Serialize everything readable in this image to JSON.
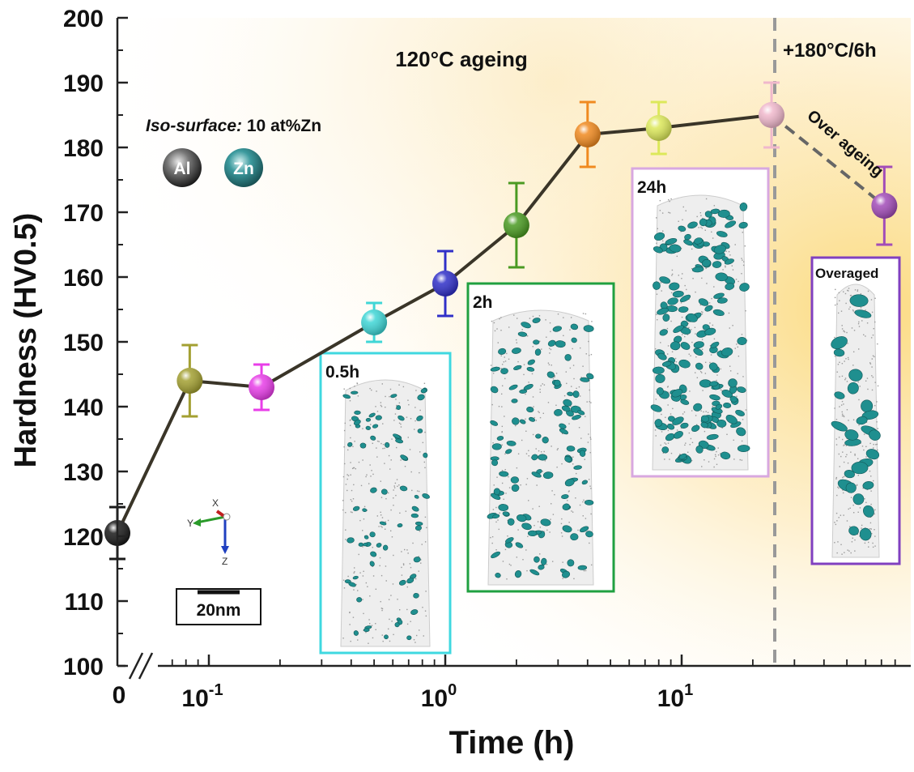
{
  "chart_data": {
    "type": "scatter",
    "xlabel": "Time (h)",
    "ylabel": "Hardness (HV0.5)",
    "ylim": [
      100,
      200
    ],
    "x_scale": "log",
    "x_break_label": "0",
    "x_tick_labels": [
      {
        "x": 0.1,
        "base": "10",
        "exp": "-1"
      },
      {
        "x": 1,
        "base": "10",
        "exp": "0"
      },
      {
        "x": 10,
        "base": "10",
        "exp": "1"
      }
    ],
    "y_tick_labels": [
      "100",
      "110",
      "120",
      "130",
      "140",
      "150",
      "160",
      "170",
      "180",
      "190",
      "200"
    ],
    "y_ticks": [
      100,
      110,
      120,
      130,
      140,
      150,
      160,
      170,
      180,
      190,
      200
    ],
    "series": [
      {
        "points": [
          {
            "x": 0,
            "y": 120.5,
            "err": 4,
            "color": "#1a1a1a"
          },
          {
            "x": 0.083,
            "y": 144,
            "err": 5.5,
            "color": "#a3a032"
          },
          {
            "x": 0.167,
            "y": 143,
            "err": 3.5,
            "color": "#e83ee8"
          },
          {
            "x": 0.5,
            "y": 153,
            "err": 3,
            "color": "#3fd6d6"
          },
          {
            "x": 1,
            "y": 159,
            "err": 5,
            "color": "#3030c8"
          },
          {
            "x": 2,
            "y": 168,
            "err": 6.5,
            "color": "#4a9a22"
          },
          {
            "x": 4,
            "y": 182,
            "err": 5,
            "color": "#f08a20"
          },
          {
            "x": 8,
            "y": 183,
            "err": 4,
            "color": "#dce85a"
          },
          {
            "x": 24,
            "y": 185,
            "err": 5,
            "color": "#f0b8cc"
          }
        ]
      },
      {
        "points": [
          {
            "x": 72,
            "y": 171,
            "err": 6,
            "color": "#a24cb8"
          }
        ]
      }
    ],
    "annotations": {
      "region_label": "120°C ageing",
      "post_label": "+180°C/6h",
      "over_label": "Over ageing",
      "iso_surface_prefix": "Iso-surface:",
      "iso_surface_value": " 10 at%Zn",
      "atom_al": "Al",
      "atom_zn": "Zn",
      "scale_bar": "20nm",
      "axes_x": "X",
      "axes_y": "Y",
      "axes_z": "Z",
      "insets": [
        {
          "label": "0.5h",
          "border": "#3fd8e0"
        },
        {
          "label": "2h",
          "border": "#20a040"
        },
        {
          "label": "24h",
          "border": "#d8a8e0"
        },
        {
          "label": "Overaged",
          "border": "#8040c0"
        }
      ]
    },
    "colors": {
      "background_glow": "#fbd97a",
      "line": "#3a3528",
      "dashed_divider": "#999999",
      "particle": "#1f8f8f"
    }
  }
}
